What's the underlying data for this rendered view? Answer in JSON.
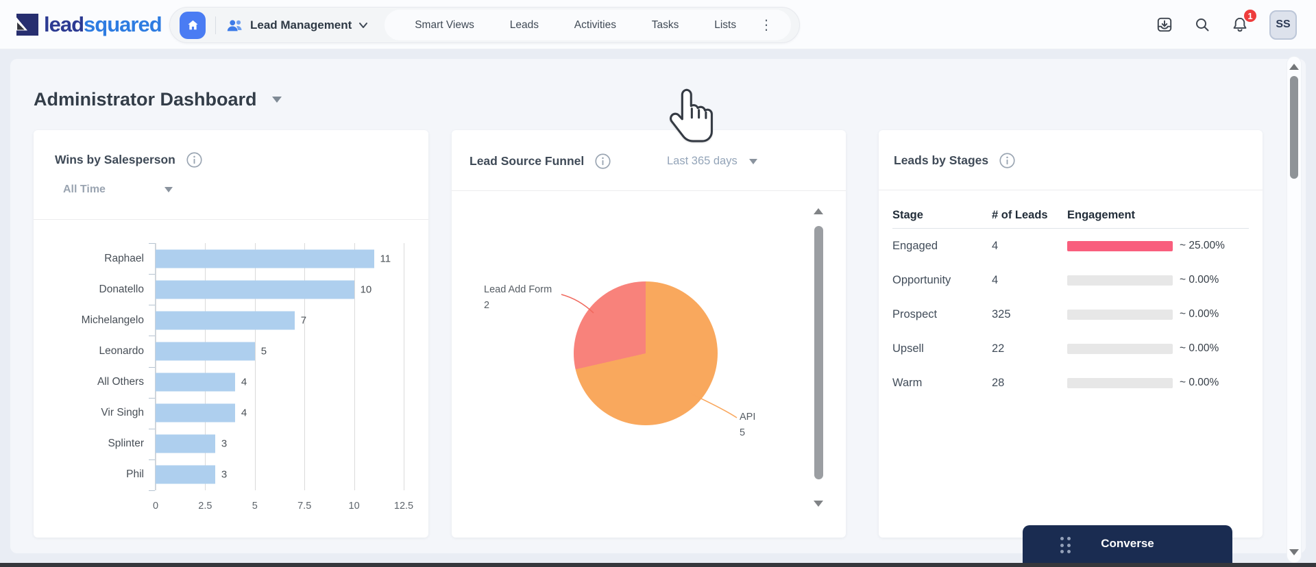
{
  "nav": {
    "logo_text_primary": "lead",
    "logo_text_secondary": "squared",
    "workspace_label": "Lead Management",
    "menu_items": [
      "Smart Views",
      "Leads",
      "Activities",
      "Tasks",
      "Lists"
    ],
    "notification_count": "1",
    "avatar_initials": "SS"
  },
  "page": {
    "title": "Administrator Dashboard"
  },
  "wins_card": {
    "title": "Wins by Salesperson",
    "filter_value": "All Time"
  },
  "funnel_card": {
    "title": "Lead Source Funnel",
    "filter_value": "Last 365 days"
  },
  "stages_card": {
    "title": "Leads by Stages",
    "columns": [
      "Stage",
      "# of Leads",
      "Engagement"
    ],
    "rows": [
      {
        "stage": "Engaged",
        "leads": "4",
        "engagement": "~ 25.00%",
        "bar_color": "#f95e7d"
      },
      {
        "stage": "Opportunity",
        "leads": "4",
        "engagement": "~ 0.00%",
        "bar_color": "#e7e7e7"
      },
      {
        "stage": "Prospect",
        "leads": "325",
        "engagement": "~ 0.00%",
        "bar_color": "#e7e7e7"
      },
      {
        "stage": "Upsell",
        "leads": "22",
        "engagement": "~ 0.00%",
        "bar_color": "#e7e7e7"
      },
      {
        "stage": "Warm",
        "leads": "28",
        "engagement": "~ 0.00%",
        "bar_color": "#e7e7e7"
      }
    ]
  },
  "converse": {
    "label": "Converse"
  },
  "chart_data": [
    {
      "type": "bar",
      "orientation": "horizontal",
      "title": "Wins by Salesperson",
      "categories": [
        "Raphael",
        "Donatello",
        "Michelangelo",
        "Leonardo",
        "All Others",
        "Vir Singh",
        "Splinter",
        "Phil"
      ],
      "values": [
        11,
        10,
        7,
        5,
        4,
        4,
        3,
        3
      ],
      "x_ticks": [
        0,
        2.5,
        5,
        7.5,
        10,
        12.5
      ],
      "xlim": [
        0,
        12.5
      ],
      "bar_color": "#aecfee",
      "grid": true,
      "legend": "none"
    },
    {
      "type": "pie",
      "title": "Lead Source Funnel",
      "slices": [
        {
          "label": "API",
          "value": 5,
          "color": "#f9a85d"
        },
        {
          "label": "Lead Add Form",
          "value": 2,
          "color": "#f8827b"
        }
      ],
      "start_angle_deg": 0,
      "direction": "clockwise",
      "legend": "callout-labels"
    },
    {
      "type": "table",
      "title": "Leads by Stages",
      "columns": [
        "Stage",
        "# of Leads",
        "Engagement"
      ],
      "rows": [
        [
          "Engaged",
          4,
          "~ 25.00%"
        ],
        [
          "Opportunity",
          4,
          "~ 0.00%"
        ],
        [
          "Prospect",
          325,
          "~ 0.00%"
        ],
        [
          "Upsell",
          22,
          "~ 0.00%"
        ],
        [
          "Warm",
          28,
          "~ 0.00%"
        ]
      ]
    }
  ]
}
